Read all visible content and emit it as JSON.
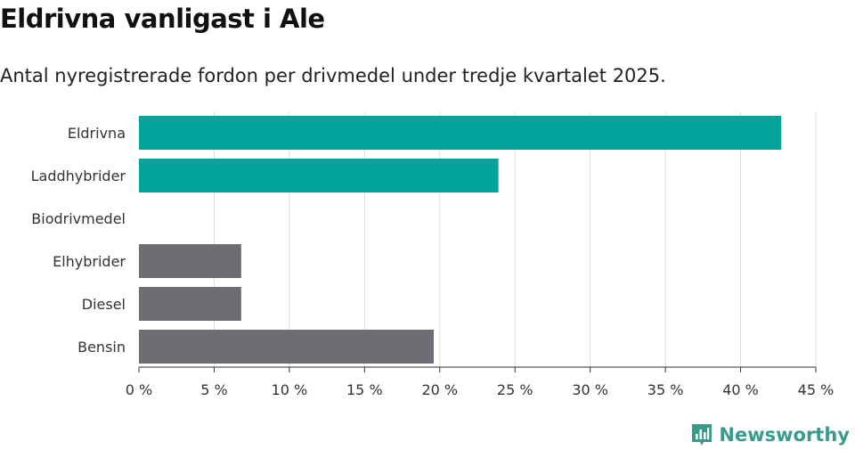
{
  "header": {
    "title": "Eldrivna vanligast i Ale",
    "subtitle": "Antal nyregistrerade fordon per drivmedel under tredje kvartalet 2025."
  },
  "branding": {
    "name": "Newsworthy"
  },
  "colors": {
    "highlight": "#00a499",
    "neutral": "#6e6d74",
    "grid": "#dddddd",
    "axis": "#333333",
    "brand": "#3a9a8c"
  },
  "chart_data": {
    "type": "bar",
    "orientation": "horizontal",
    "title": "Eldrivna vanligast i Ale",
    "subtitle": "Antal nyregistrerade fordon per drivmedel under tredje kvartalet 2025.",
    "categories": [
      "Eldrivna",
      "Laddhybrider",
      "Biodrivmedel",
      "Elhybrider",
      "Diesel",
      "Bensin"
    ],
    "values": [
      42.7,
      23.9,
      0,
      6.8,
      6.8,
      19.6
    ],
    "bar_colors": [
      "#00a499",
      "#00a499",
      "#00a499",
      "#6e6d74",
      "#6e6d74",
      "#6e6d74"
    ],
    "xlim": [
      0,
      45
    ],
    "xticks": [
      0,
      5,
      10,
      15,
      20,
      25,
      30,
      35,
      40,
      45
    ],
    "xtick_labels": [
      "0 %",
      "5 %",
      "10 %",
      "15 %",
      "20 %",
      "25 %",
      "30 %",
      "35 %",
      "40 %",
      "45 %"
    ],
    "xlabel": "",
    "ylabel": "",
    "grid": true,
    "legend": "none"
  }
}
